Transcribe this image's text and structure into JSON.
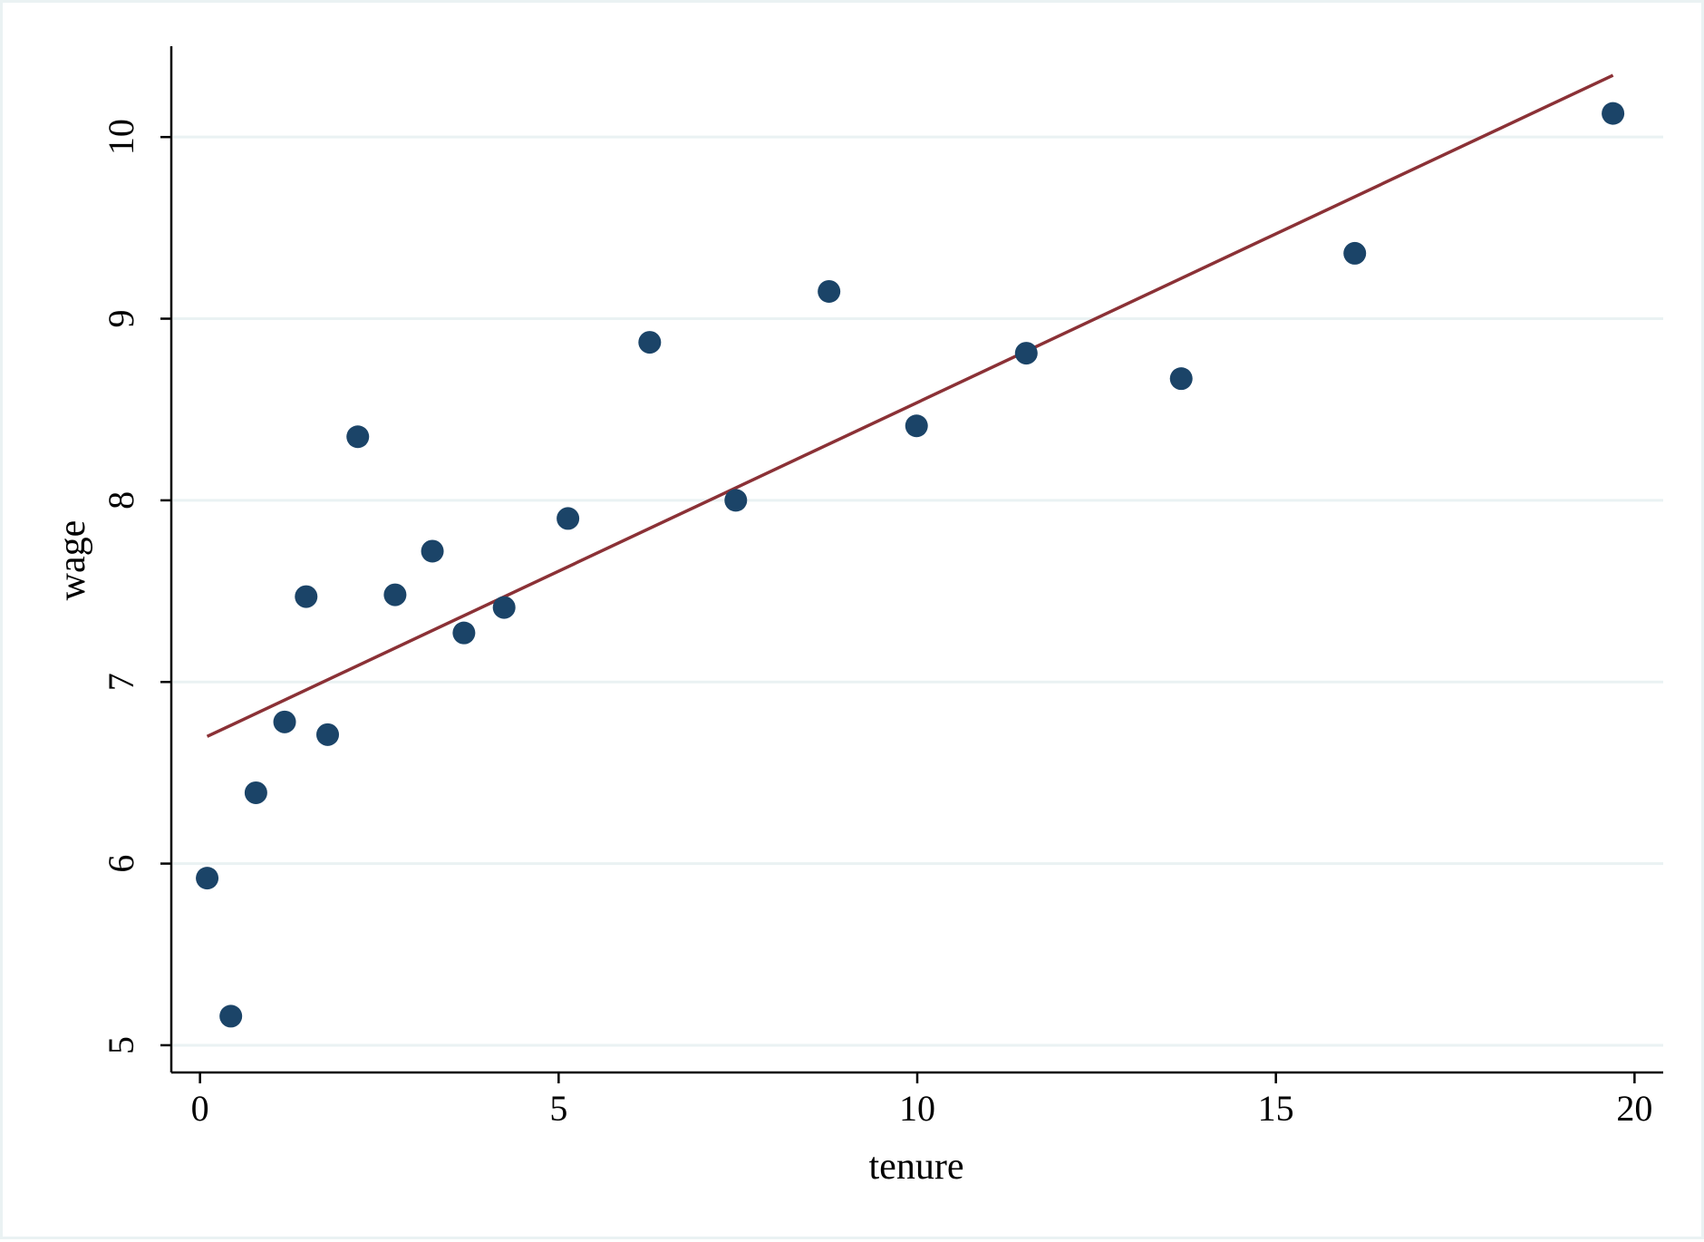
{
  "chart_data": {
    "type": "scatter",
    "xlabel": "tenure",
    "ylabel": "wage",
    "xlim": [
      -0.4,
      20.4
    ],
    "ylim": [
      4.85,
      10.5
    ],
    "xticks": [
      0,
      5,
      10,
      15,
      20
    ],
    "yticks": [
      5,
      6,
      7,
      8,
      9,
      10
    ],
    "grid": "horizontal",
    "legend": "none",
    "points": [
      {
        "x": 0.1,
        "y": 5.92
      },
      {
        "x": 0.43,
        "y": 5.16
      },
      {
        "x": 0.78,
        "y": 6.39
      },
      {
        "x": 1.18,
        "y": 6.78
      },
      {
        "x": 1.48,
        "y": 7.47
      },
      {
        "x": 1.78,
        "y": 6.71
      },
      {
        "x": 2.2,
        "y": 8.35
      },
      {
        "x": 2.72,
        "y": 7.48
      },
      {
        "x": 3.24,
        "y": 7.72
      },
      {
        "x": 3.68,
        "y": 7.27
      },
      {
        "x": 4.24,
        "y": 7.41
      },
      {
        "x": 5.13,
        "y": 7.9
      },
      {
        "x": 6.27,
        "y": 8.87
      },
      {
        "x": 7.47,
        "y": 8.0
      },
      {
        "x": 8.77,
        "y": 9.15
      },
      {
        "x": 9.99,
        "y": 8.41
      },
      {
        "x": 11.52,
        "y": 8.81
      },
      {
        "x": 13.68,
        "y": 8.67
      },
      {
        "x": 16.1,
        "y": 9.36
      },
      {
        "x": 19.7,
        "y": 10.13
      }
    ],
    "fit_line": {
      "x": [
        0.1,
        19.7
      ],
      "y": [
        6.7,
        10.34
      ]
    },
    "colors": {
      "points": "#1b4468",
      "fit_line": "#8b3136",
      "grid": "#eaf2f3",
      "axis": "#000000"
    }
  }
}
